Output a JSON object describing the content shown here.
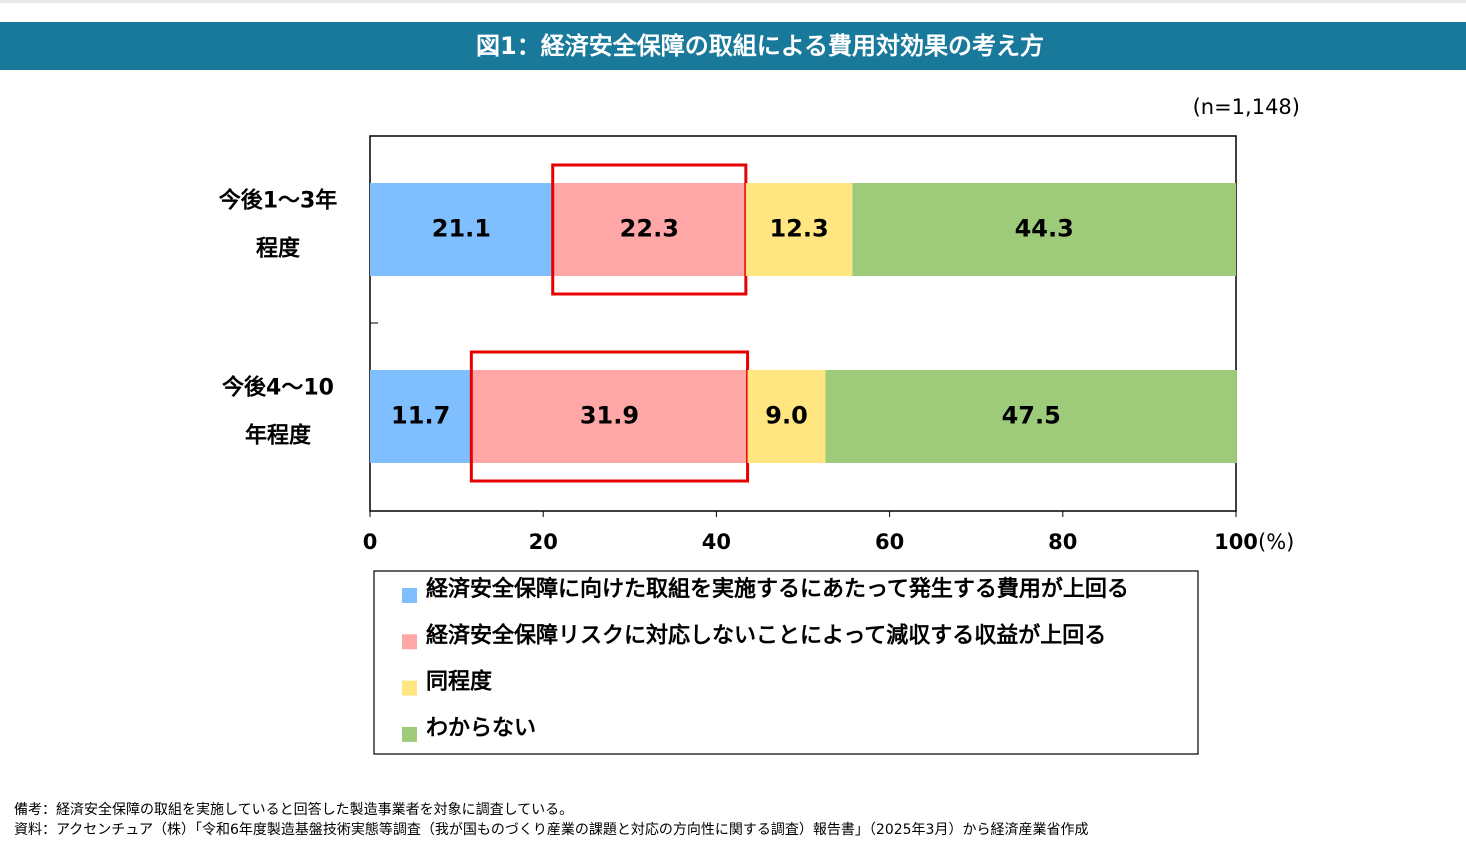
{
  "chart_data": {
    "type": "bar",
    "orientation": "horizontal",
    "stacked": true,
    "title": "図1：経済安全保障の取組による費用対効果の考え方",
    "sample_size": "(n=1,148)",
    "x_unit": "(%)",
    "categories": [
      [
        "今後1～3年",
        "程度"
      ],
      [
        "今後4～10",
        "年程度"
      ]
    ],
    "series": [
      {
        "name": "経済安全保障に向けた取組を実施するにあたって発生する費用が上回る",
        "color": "#80bfff",
        "values": [
          21.1,
          11.7
        ]
      },
      {
        "name": "経済安全保障リスクに対応しないことによって減収する収益が上回る",
        "color": "#ffa6a6",
        "values": [
          22.3,
          31.9
        ]
      },
      {
        "name": "同程度",
        "color": "#ffe680",
        "values": [
          12.3,
          9.0
        ],
        "value_labels": [
          "12.3",
          "9.0"
        ]
      },
      {
        "name": "わからない",
        "color": "#9dcb7a",
        "values": [
          44.3,
          47.5
        ]
      }
    ],
    "xlim": [
      0,
      100
    ],
    "xticks": [
      0,
      20,
      40,
      60,
      80,
      100
    ],
    "highlight_series": 1,
    "highlight_color": "#e60000",
    "legend": "bottom"
  },
  "notes": [
    "備考：経済安全保障の取組を実施していると回答した製造事業者を対象に調査している。",
    "資料：アクセンチュア（株）「令和6年度製造基盤技術実態等調査（我が国ものづくり産業の課題と対応の方向性に関する調査）報告書」（2025年3月）から経済産業省作成"
  ]
}
